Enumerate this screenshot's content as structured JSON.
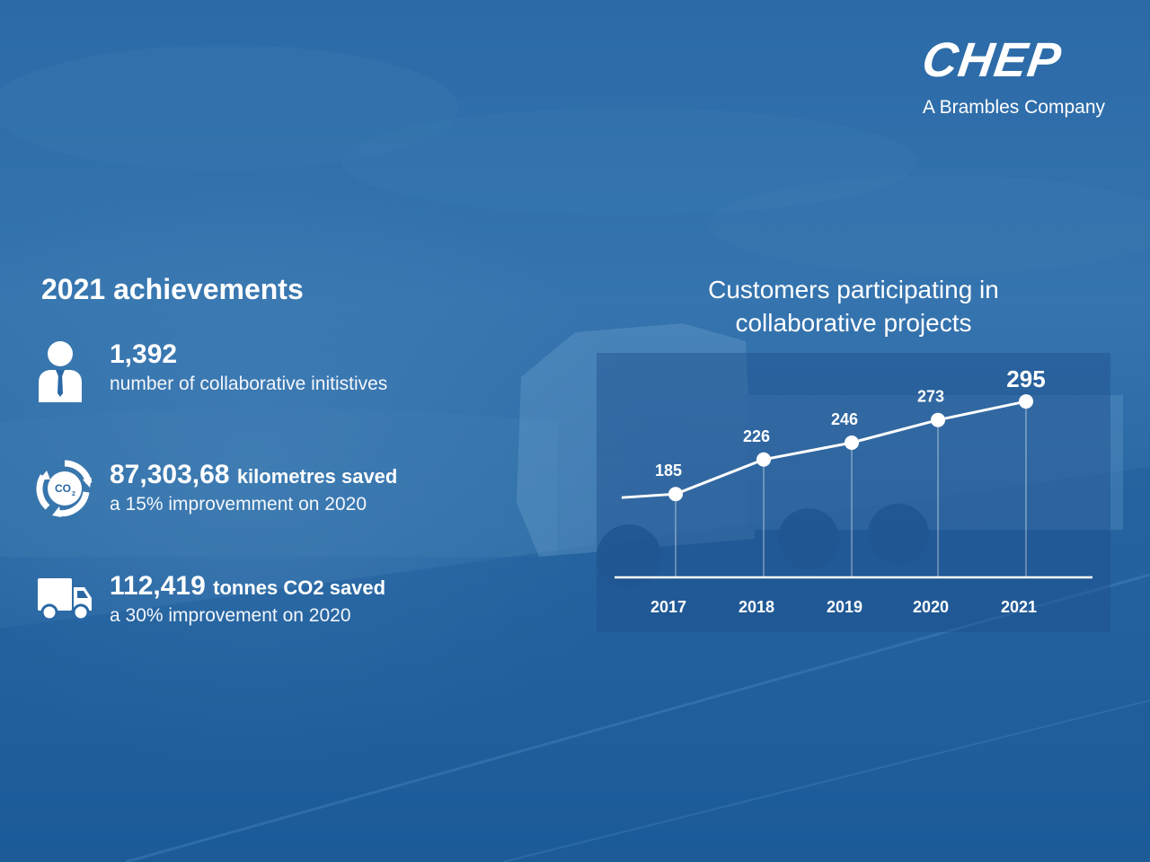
{
  "logo": {
    "brand": "CHEP",
    "tagline": "A Brambles Company"
  },
  "achievements": {
    "title": "2021 achievements",
    "items": [
      {
        "icon": "person-icon",
        "value": "1,392",
        "unit": "",
        "description": "number of collaborative initistives"
      },
      {
        "icon": "co2-recycle-icon",
        "value": "87,303,68",
        "unit": "kilometres saved",
        "description": "a 15% improvemment on 2020"
      },
      {
        "icon": "truck-icon",
        "value": "112,419",
        "unit": "tonnes CO2 saved",
        "description": "a 30% improvement on 2020"
      }
    ]
  },
  "chart_data": {
    "type": "line",
    "title": "Customers participating in collaborative projects",
    "title_lines": [
      "Customers participating in",
      "collaborative projects"
    ],
    "categories": [
      "2017",
      "2018",
      "2019",
      "2020",
      "2021"
    ],
    "values": [
      185,
      226,
      246,
      273,
      295
    ],
    "data_labels": [
      "185",
      "226",
      "246",
      "273",
      "295"
    ],
    "highlight_index": 4,
    "xlabel": "",
    "ylabel": "",
    "grid": false,
    "legend": "none",
    "colors": {
      "line": "#ffffff",
      "panel": "#2a5f97"
    }
  }
}
